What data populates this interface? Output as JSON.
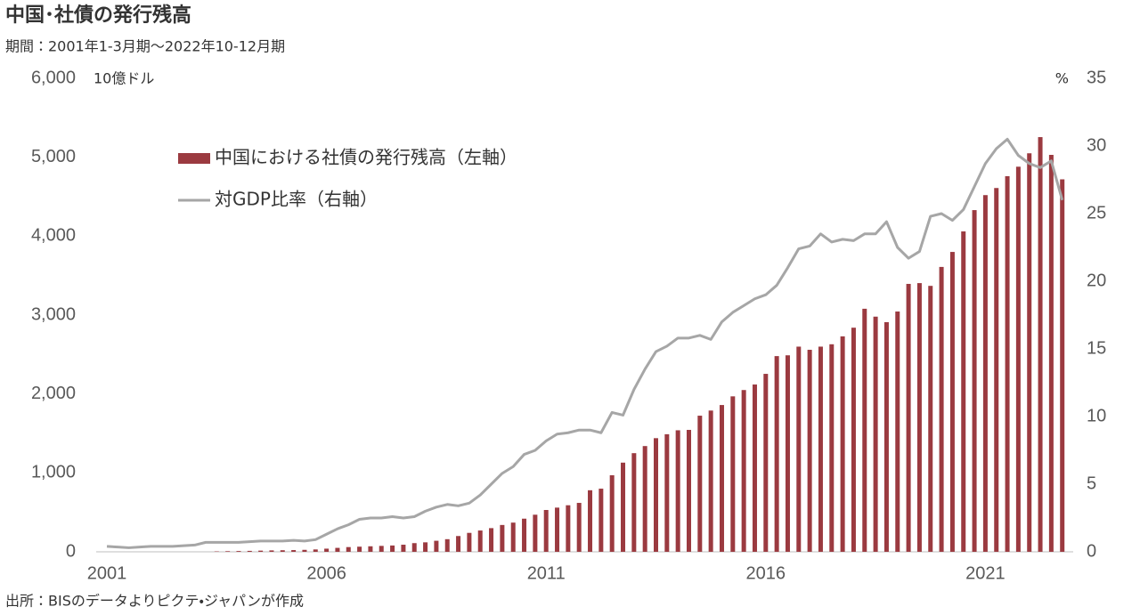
{
  "chart_data": {
    "type": "bar",
    "title": "中国･社債の発行残高",
    "subtitle": "期間：2001年1-3月期～2022年10-12月期",
    "source": "出所：BISのデータよりピクテ・ジャパンが作成",
    "y_unit": "10億ドル",
    "y2_unit": "%",
    "categories": [
      "2001",
      null,
      null,
      null,
      null,
      null,
      null,
      null,
      null,
      null,
      null,
      null,
      null,
      null,
      null,
      null,
      null,
      null,
      null,
      null,
      "2006",
      null,
      null,
      null,
      null,
      null,
      null,
      null,
      null,
      null,
      null,
      null,
      null,
      null,
      null,
      null,
      null,
      null,
      null,
      null,
      "2011",
      null,
      null,
      null,
      null,
      null,
      null,
      null,
      null,
      null,
      null,
      null,
      null,
      null,
      null,
      null,
      null,
      null,
      null,
      null,
      "2016",
      null,
      null,
      null,
      null,
      null,
      null,
      null,
      null,
      null,
      null,
      null,
      null,
      null,
      null,
      null,
      null,
      null,
      null,
      null,
      "2021",
      null,
      null,
      null,
      null,
      null,
      null,
      null
    ],
    "series": [
      {
        "name": "中国における社債の発行残高（左軸）",
        "type": "bar",
        "color": "#9b3a40",
        "values": [
          0,
          0,
          0,
          0,
          0,
          0,
          0,
          0,
          0,
          0,
          5,
          8,
          10,
          12,
          15,
          18,
          20,
          22,
          25,
          30,
          40,
          50,
          60,
          65,
          70,
          75,
          80,
          90,
          110,
          120,
          140,
          160,
          200,
          240,
          270,
          300,
          340,
          370,
          420,
          470,
          530,
          560,
          590,
          620,
          780,
          800,
          970,
          1130,
          1250,
          1340,
          1440,
          1490,
          1540,
          1545,
          1725,
          1790,
          1860,
          1970,
          2050,
          2120,
          2255,
          2480,
          2490,
          2600,
          2560,
          2600,
          2630,
          2730,
          2840,
          3080,
          2980,
          2910,
          3045,
          3395,
          3405,
          3370,
          3610,
          3800,
          4060,
          4330,
          4520,
          4610,
          4760,
          4880,
          5050,
          5255,
          5030,
          4720
        ]
      },
      {
        "name": "対GDP比率（右軸）",
        "type": "line",
        "axis": "y2",
        "color": "#a6a6a6",
        "values": [
          0.4,
          0.35,
          0.3,
          0.35,
          0.4,
          0.4,
          0.4,
          0.45,
          0.5,
          0.7,
          0.7,
          0.7,
          0.7,
          0.75,
          0.8,
          0.8,
          0.8,
          0.85,
          0.8,
          0.9,
          1.3,
          1.7,
          2.0,
          2.4,
          2.5,
          2.5,
          2.6,
          2.5,
          2.6,
          3.0,
          3.3,
          3.5,
          3.4,
          3.6,
          4.2,
          5.0,
          5.8,
          6.3,
          7.2,
          7.5,
          8.2,
          8.7,
          8.8,
          9.0,
          9.0,
          8.8,
          10.3,
          10.1,
          12.0,
          13.5,
          14.8,
          15.2,
          15.8,
          15.8,
          16.0,
          15.7,
          17.0,
          17.7,
          18.2,
          18.7,
          19.0,
          19.7,
          21.0,
          22.4,
          22.6,
          23.5,
          22.9,
          23.1,
          23.0,
          23.5,
          23.5,
          24.4,
          22.5,
          21.7,
          22.2,
          24.8,
          25.0,
          24.5,
          25.3,
          27.0,
          28.7,
          29.8,
          30.5,
          29.3,
          28.7,
          28.4,
          28.9,
          26.0
        ]
      }
    ],
    "ylim": [
      0,
      6000
    ],
    "yticks": [
      0,
      {
        "value": 1000,
        "label": "1,000"
      },
      {
        "value": 2000,
        "label": "2,000"
      },
      {
        "value": 3000,
        "label": "3,000"
      },
      {
        "value": 4000,
        "label": "4,000"
      },
      {
        "value": 5000,
        "label": "5,000"
      },
      {
        "value": 6000,
        "label": "6,000"
      }
    ],
    "y2lim": [
      0,
      35
    ],
    "y2ticks": [
      0,
      5,
      10,
      15,
      20,
      25,
      30,
      35
    ]
  }
}
